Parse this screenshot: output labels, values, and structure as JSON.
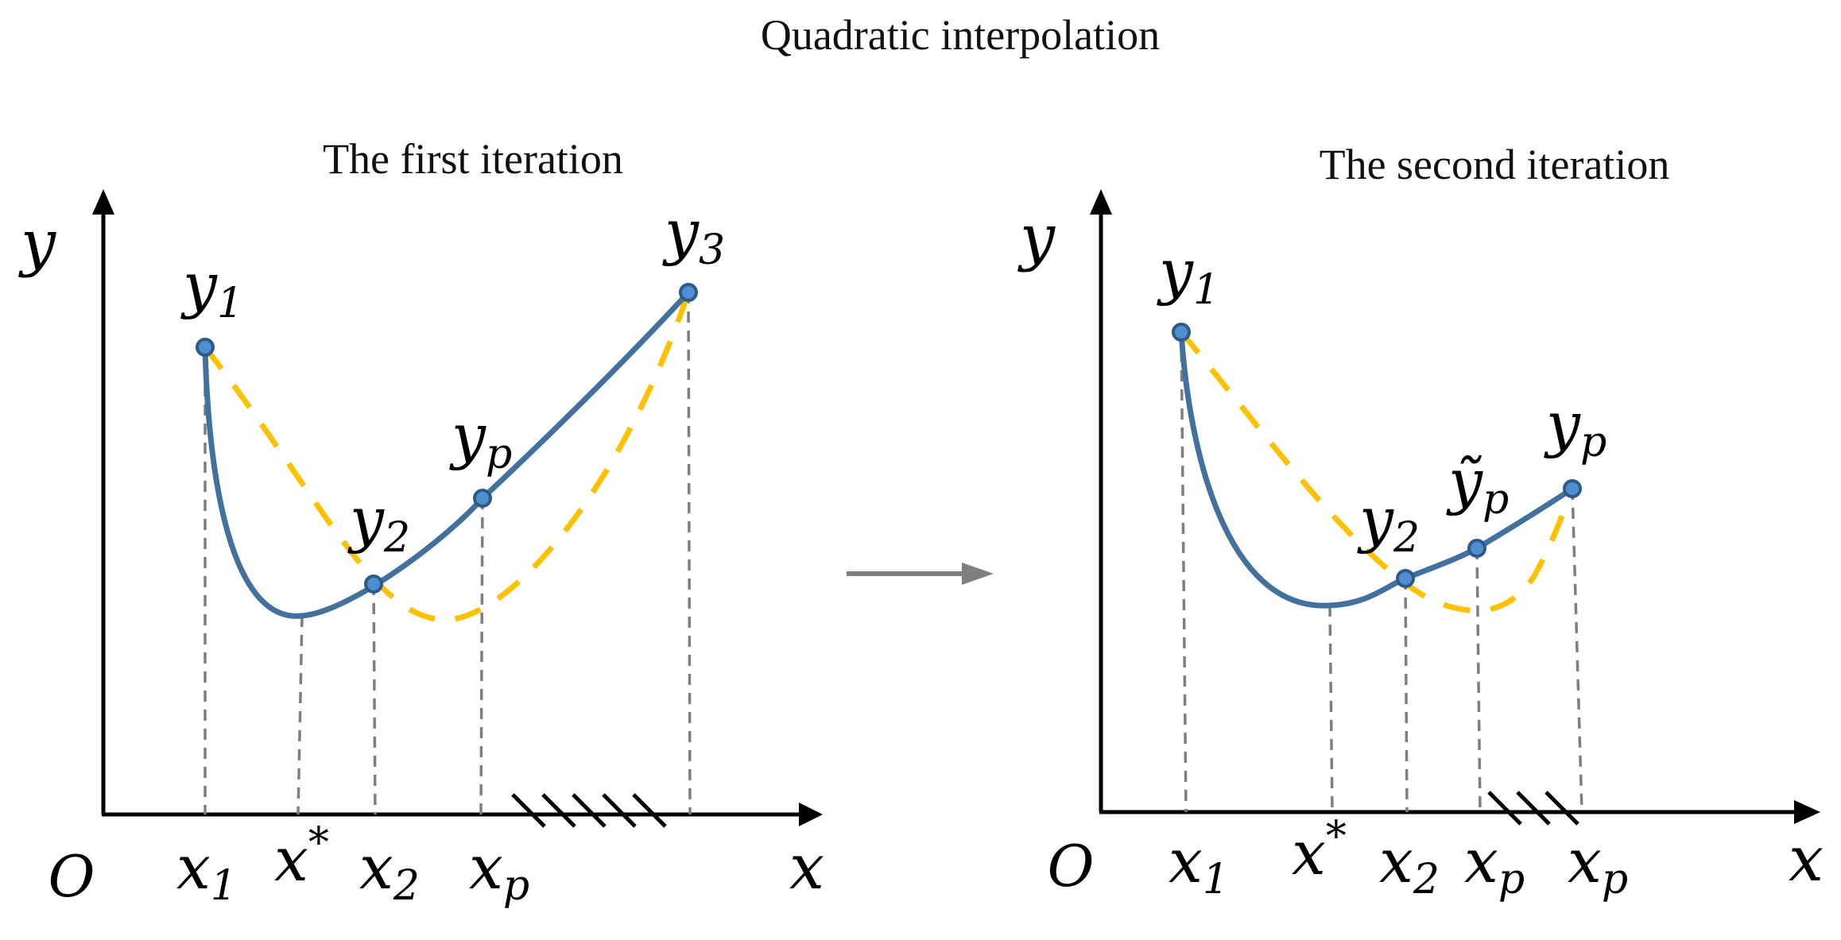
{
  "title": "Quadratic interpolation",
  "colors": {
    "objective_curve": "#41719C",
    "interpolation_curve": "#FFC000",
    "guide_lines": "#7F7F7F",
    "arrow": "#7F7F7F"
  },
  "panels": [
    {
      "heading": "The first iteration",
      "axis_y_label": "y",
      "axis_x_label": "x",
      "origin_label": "O",
      "points": [
        {
          "base": "y",
          "sub": "1"
        },
        {
          "base": "y",
          "sub": "2"
        },
        {
          "base": "y",
          "sub": "p"
        },
        {
          "base": "y",
          "sub": "3"
        }
      ],
      "x_ticks": [
        {
          "base": "x",
          "sub": "1",
          "sup": ""
        },
        {
          "base": "x",
          "sub": "",
          "sup": "*"
        },
        {
          "base": "x",
          "sub": "2",
          "sup": ""
        },
        {
          "base": "x",
          "sub": "p",
          "sup": ""
        }
      ]
    },
    {
      "heading": "The second iteration",
      "axis_y_label": "y",
      "axis_x_label": "x",
      "origin_label": "O",
      "points": [
        {
          "base": "y",
          "sub": "1"
        },
        {
          "base": "y",
          "sub": "2"
        },
        {
          "base": "ỹ",
          "sub": "p"
        },
        {
          "base": "y",
          "sub": "p"
        }
      ],
      "x_ticks": [
        {
          "base": "x",
          "sub": "1",
          "sup": ""
        },
        {
          "base": "x",
          "sub": "",
          "sup": "*"
        },
        {
          "base": "x",
          "sub": "2",
          "sup": ""
        },
        {
          "base": "x",
          "sub": "p",
          "sup": ""
        },
        {
          "base": "x",
          "sub": "p",
          "sup": ""
        }
      ]
    }
  ]
}
